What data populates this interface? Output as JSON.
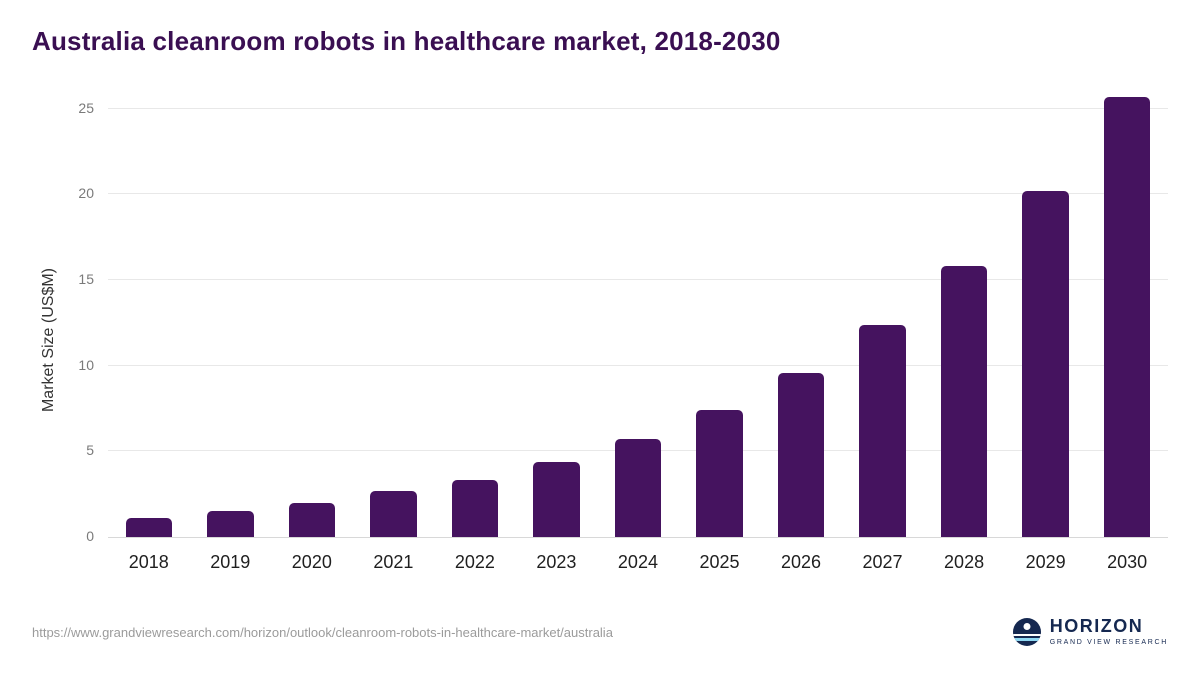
{
  "chart_data": {
    "type": "bar",
    "title": "Australia cleanroom robots in healthcare market, 2018-2030",
    "categories": [
      "2018",
      "2019",
      "2020",
      "2021",
      "2022",
      "2023",
      "2024",
      "2025",
      "2026",
      "2027",
      "2028",
      "2029",
      "2030"
    ],
    "values": [
      1.1,
      1.5,
      2.0,
      2.7,
      3.3,
      4.4,
      5.7,
      7.4,
      9.6,
      12.4,
      15.8,
      20.2,
      25.7
    ],
    "xlabel": "",
    "ylabel": "Market Size (US$M)",
    "ylim": [
      0,
      26.5
    ],
    "yticks": [
      0,
      5,
      10,
      15,
      20,
      25
    ],
    "grid": true,
    "legend": false
  },
  "colors": {
    "bar": "#45135f",
    "title": "#3a0f52",
    "gridline": "#e8e8e8"
  },
  "footer": {
    "source_url": "https://www.grandviewresearch.com/horizon/outlook/cleanroom-robots-in-healthcare-market/australia",
    "logo": {
      "name": "HORIZON",
      "subtitle": "GRAND VIEW RESEARCH"
    }
  }
}
